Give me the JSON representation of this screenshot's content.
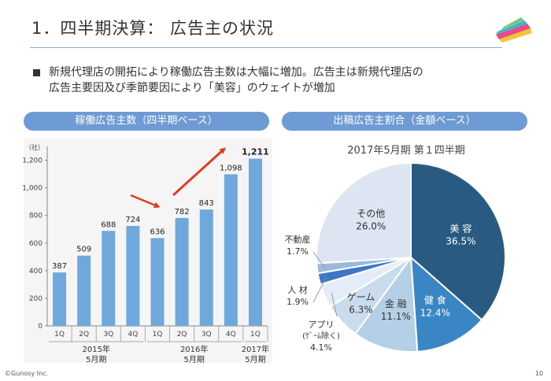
{
  "slide": {
    "title": "1．四半期決算：  広告主の状況",
    "summary_line1": "新規代理店の開拓により稼働広告主数は大幅に増加。広告主は新規代理店の",
    "summary_line2": "広告主要因及び季節要因により「美容」のウェイトが増加",
    "copyright": "©Gunosy Inc.",
    "page_number": "10"
  },
  "chart_data": [
    {
      "type": "bar",
      "title": "稼働広告主数（四半期ベース）",
      "ylabel": "（社）",
      "ylim": [
        0,
        1300
      ],
      "yticks": [
        "0",
        "200",
        "400",
        "600",
        "800",
        "1,000",
        "1,200"
      ],
      "categories": [
        "1Q",
        "2Q",
        "3Q",
        "4Q",
        "1Q",
        "2Q",
        "3Q",
        "4Q",
        "1Q"
      ],
      "values": [
        387,
        509,
        688,
        724,
        636,
        782,
        843,
        1098,
        1211
      ],
      "value_labels": [
        "387",
        "509",
        "688",
        "724",
        "636",
        "782",
        "843",
        "1,098",
        "1,211"
      ],
      "color": "#6fa8dc",
      "groups": [
        {
          "line1": "2015年",
          "line2": "5月期"
        },
        {
          "line1": "2016年",
          "line2": "5月期"
        },
        {
          "line1": "2017年",
          "line2": "5月期"
        }
      ],
      "annotation_color": "#e03c20"
    },
    {
      "type": "pie",
      "title": "出稿広告主割合（金額ベース）",
      "subtitle": "2017年5月期 第１四半期",
      "slices": [
        {
          "label": "美 容",
          "value": 36.5,
          "value_label": "36.5%",
          "color": "#295b82"
        },
        {
          "label": "健 食",
          "value": 12.4,
          "value_label": "12.4%",
          "color": "#3a86c4"
        },
        {
          "label": "金 融",
          "value": 11.1,
          "value_label": "11.1%",
          "color": "#b5cfe6"
        },
        {
          "label": "ゲーム",
          "value": 6.3,
          "value_label": "6.3%",
          "color": "#c9dcee"
        },
        {
          "label": "アプリ",
          "label2": "(ｹﾞｰﾑ除く)",
          "value": 4.1,
          "value_label": "4.1%",
          "color": "#e4edf7"
        },
        {
          "label": "人 材",
          "value": 1.9,
          "value_label": "1.9%",
          "color": "#3f76c6"
        },
        {
          "label": "不動産",
          "value": 1.7,
          "value_label": "1.7%",
          "color": "#9cb8dd"
        },
        {
          "label": "その他",
          "value": 26.0,
          "value_label": "26.0%",
          "color": "#dde5f2"
        }
      ]
    }
  ]
}
